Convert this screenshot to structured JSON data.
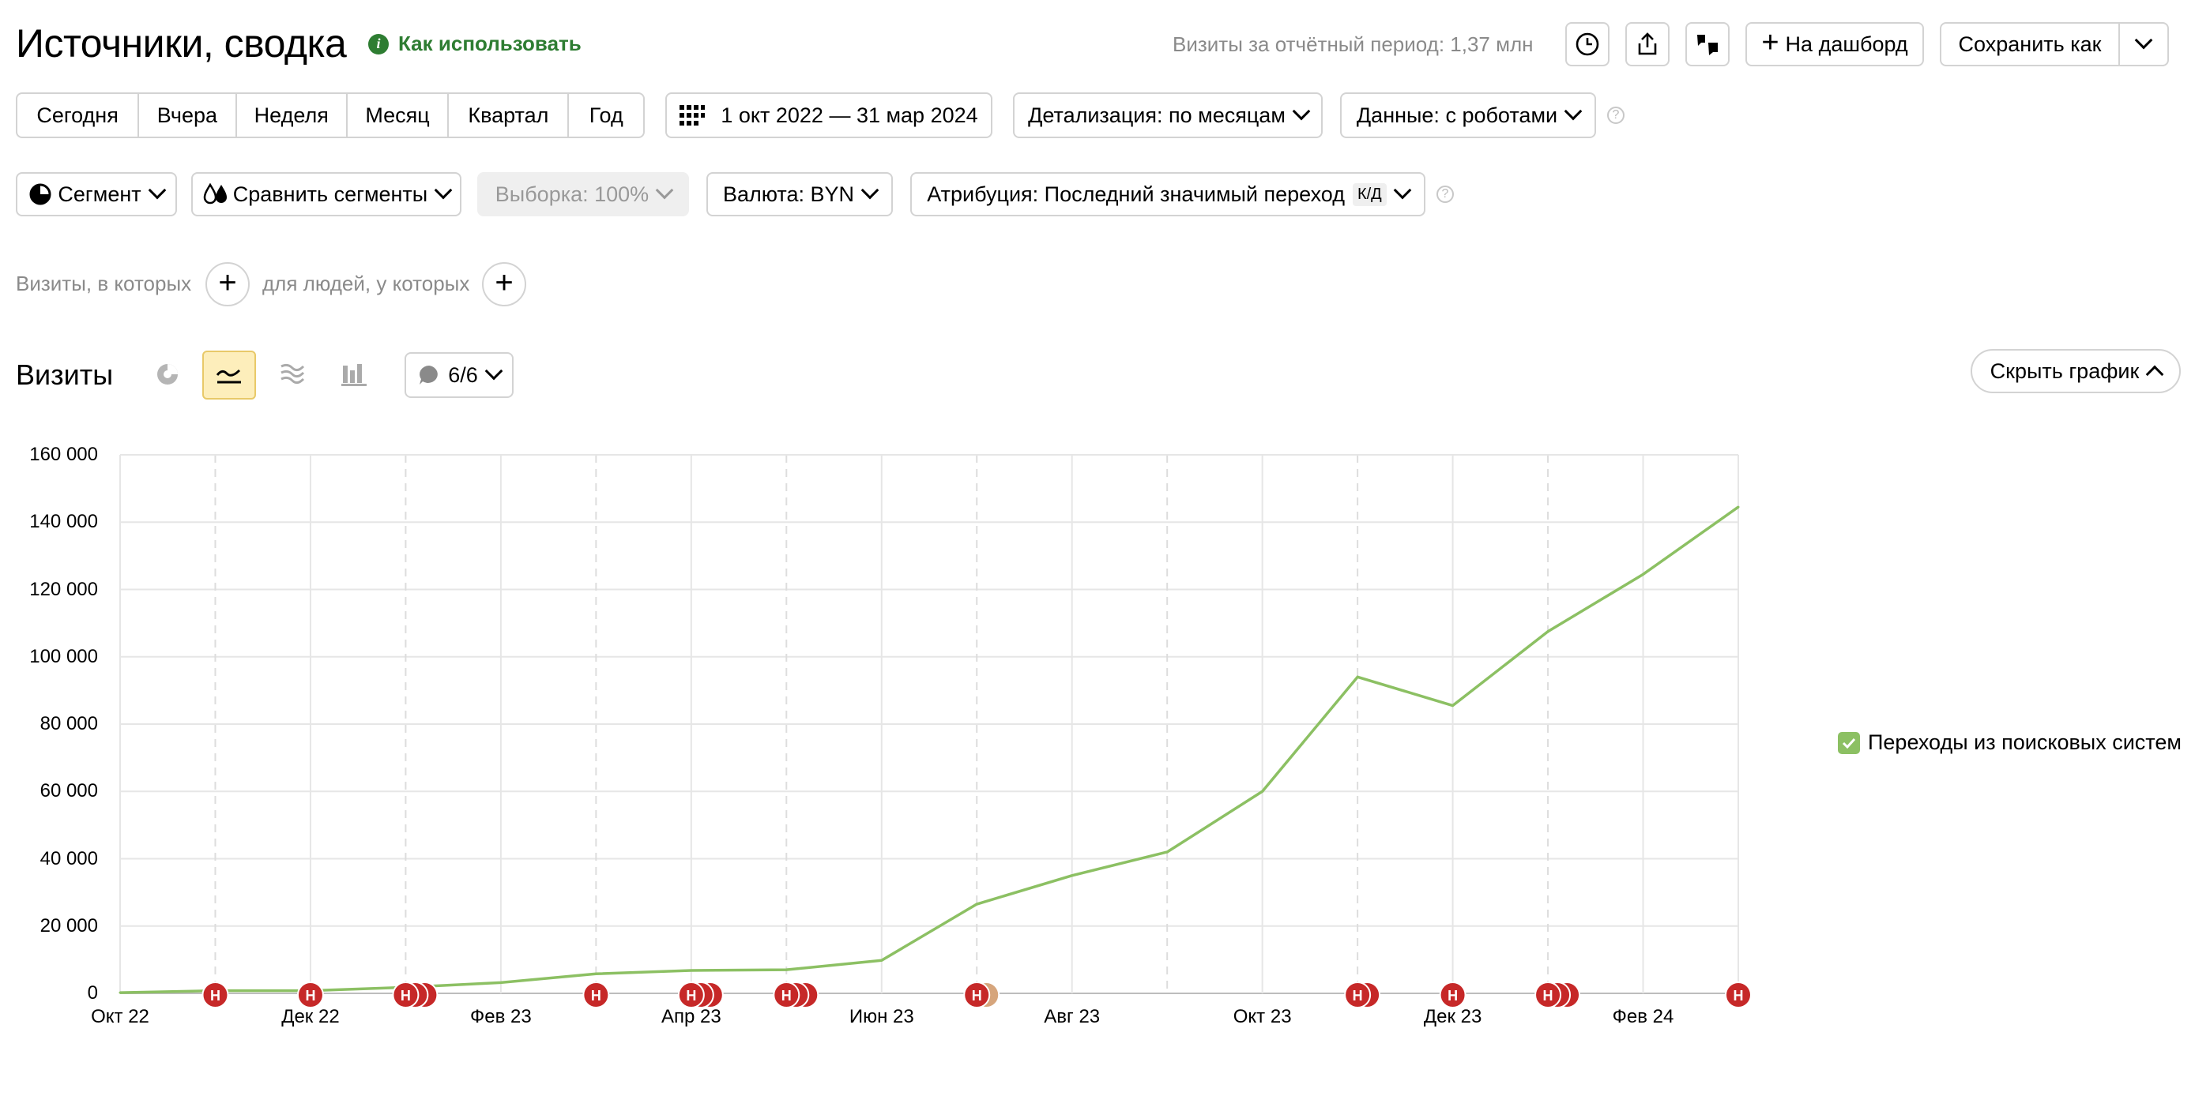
{
  "header": {
    "title": "Источники, сводка",
    "how_to_use": "Как использовать",
    "visits_period": "Визиты за отчётный период: 1,37 млн",
    "to_dashboard": "На дашборд",
    "save_as": "Сохранить как"
  },
  "period_tabs": [
    "Сегодня",
    "Вчера",
    "Неделя",
    "Месяц",
    "Квартал",
    "Год"
  ],
  "date_range": "1 окт 2022 — 31 мар 2024",
  "detail": "Детализация: по месяцам",
  "data_filter": "Данные: с роботами",
  "segment": "Сегмент",
  "compare_segments": "Сравнить сегменты",
  "sample": "Выборка: 100%",
  "currency": "Валюта: BYN",
  "attribution": "Атрибуция: Последний значимый переход",
  "attribution_badge": "К/Д",
  "filters": {
    "visits_where": "Визиты, в которых",
    "people_where": "для людей, у которых"
  },
  "chart_header": {
    "title": "Визиты",
    "annotations_count": "6/6",
    "hide_chart": "Скрыть график"
  },
  "legend": {
    "series_label": "Переходы из поисковых систем"
  },
  "colors": {
    "line": "#8cc063",
    "marker": "#c62828",
    "marker_alt": "#d6a57c",
    "active_toggle": "#fdeebb",
    "green_text": "#2e7d32"
  },
  "chart_data": {
    "type": "line",
    "title": "Визиты",
    "x": [
      "Окт 22",
      "Ноя 22",
      "Дек 22",
      "Янв 23",
      "Фев 23",
      "Мар 23",
      "Апр 23",
      "Май 23",
      "Июн 23",
      "Июл 23",
      "Авг 23",
      "Сен 23",
      "Окт 23",
      "Ноя 23",
      "Дек 23",
      "Янв 24",
      "Фев 24",
      "Мар 24"
    ],
    "series": [
      {
        "name": "Переходы из поисковых систем",
        "values": [
          200,
          800,
          800,
          1800,
          3200,
          5800,
          6800,
          7000,
          9800,
          26500,
          35000,
          42000,
          60000,
          94000,
          85500,
          107500,
          124500,
          144500
        ]
      }
    ],
    "x_tick_labels": [
      "Окт 22",
      "Дек 22",
      "Фев 23",
      "Апр 23",
      "Июн 23",
      "Авг 23",
      "Окт 23",
      "Дек 23",
      "Фев 24"
    ],
    "y_tick_labels": [
      "0",
      "20 000",
      "40 000",
      "60 000",
      "80 000",
      "100 000",
      "120 000",
      "140 000",
      "160 000"
    ],
    "ylim": [
      0,
      160000
    ],
    "grid": true,
    "legend_position": "right",
    "annotation_marker_label": "Н",
    "annotation_markers": [
      {
        "x": "Ноя 22",
        "count": 1
      },
      {
        "x": "Дек 22",
        "count": 1
      },
      {
        "x": "Янв 23",
        "count": 3
      },
      {
        "x": "Мар 23",
        "count": 1
      },
      {
        "x": "Апр 23",
        "count": 3
      },
      {
        "x": "Май 23",
        "count": 3
      },
      {
        "x": "Июл 23",
        "count": 2
      },
      {
        "x": "Ноя 23",
        "count": 2
      },
      {
        "x": "Дек 23",
        "count": 1
      },
      {
        "x": "Янв 24",
        "count": 3
      },
      {
        "x": "Мар 24",
        "count": 1
      }
    ]
  }
}
